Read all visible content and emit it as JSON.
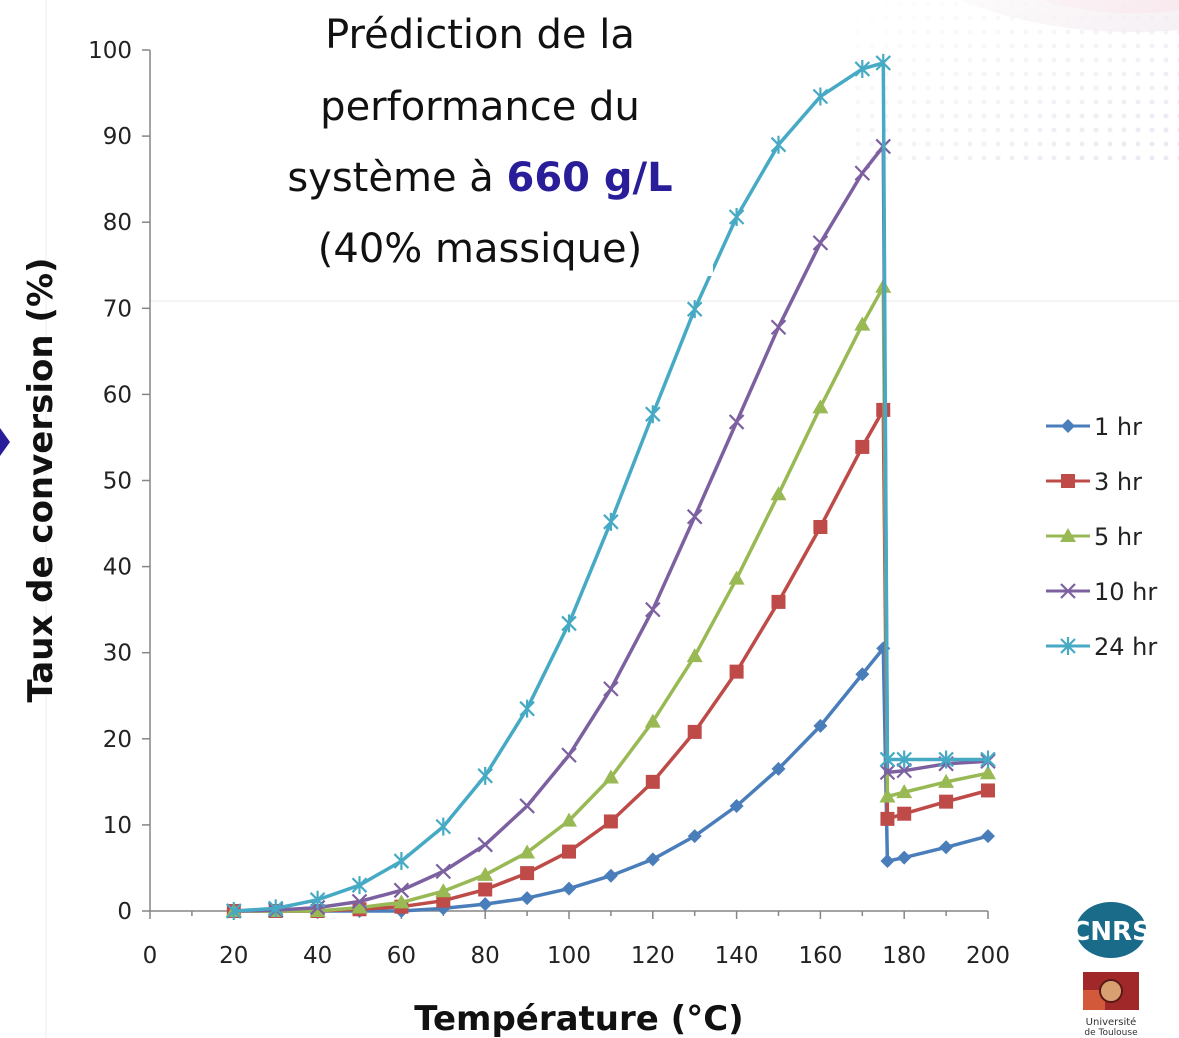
{
  "colors": {
    "series_1hr": "#4a7ebb",
    "series_3hr": "#be4b48",
    "series_5hr": "#98b954",
    "series_10hr": "#7d60a0",
    "series_24hr": "#46aac5",
    "highlight": "#2a1d9a",
    "cnrs_logo": "#1a6a8a",
    "toulouse_logo": "#a02828"
  },
  "logos": {
    "cnrs_text": "CNRS",
    "toulouse_line1": "Université",
    "toulouse_line2": "de Toulouse"
  },
  "chart_data": {
    "type": "line",
    "title_lines": [
      "Prédiction de la",
      "performance du"
    ],
    "title_line3_prefix": "système à ",
    "title_line3_highlight": "660 g/L",
    "title_line4": "(40% massique)",
    "xlabel": "Température (°C)",
    "ylabel": "Taux de conversion (%)",
    "xlim": [
      0,
      200
    ],
    "ylim": [
      0,
      100
    ],
    "x_ticks": [
      "0",
      "20",
      "40",
      "60",
      "80",
      "100",
      "120",
      "140",
      "160",
      "180",
      "200"
    ],
    "y_ticks": [
      "0",
      "10",
      "20",
      "30",
      "40",
      "50",
      "60",
      "70",
      "80",
      "90",
      "100"
    ],
    "grid": "none",
    "legend_position": "right",
    "series": [
      {
        "name": "1 hr",
        "marker": "diamond",
        "x": [
          20,
          30,
          40,
          50,
          60,
          70,
          80,
          90,
          100,
          110,
          120,
          130,
          140,
          150,
          160,
          170,
          175,
          176,
          180,
          190,
          200
        ],
        "y": [
          0,
          0,
          0,
          0,
          0,
          0.3,
          0.8,
          1.5,
          2.6,
          4.1,
          6.0,
          8.7,
          12.2,
          16.5,
          21.5,
          27.5,
          30.5,
          5.8,
          6.2,
          7.4,
          8.7
        ]
      },
      {
        "name": "3 hr",
        "marker": "square",
        "x": [
          20,
          30,
          40,
          50,
          60,
          70,
          80,
          90,
          100,
          110,
          120,
          130,
          140,
          150,
          160,
          170,
          175,
          176,
          180,
          190,
          200
        ],
        "y": [
          0,
          0,
          0,
          0.2,
          0.5,
          1.2,
          2.5,
          4.4,
          6.9,
          10.4,
          15.0,
          20.8,
          27.8,
          35.9,
          44.6,
          53.9,
          58.2,
          10.7,
          11.3,
          12.7,
          14.0
        ]
      },
      {
        "name": "5 hr",
        "marker": "triangle",
        "x": [
          20,
          30,
          40,
          50,
          60,
          70,
          80,
          90,
          100,
          110,
          120,
          130,
          140,
          150,
          160,
          170,
          175,
          176,
          180,
          190,
          200
        ],
        "y": [
          0,
          0,
          0,
          0.4,
          1.0,
          2.3,
          4.2,
          6.8,
          10.5,
          15.5,
          22.0,
          29.6,
          38.6,
          48.4,
          58.5,
          68.1,
          72.5,
          13.3,
          13.8,
          15.0,
          16.0
        ]
      },
      {
        "name": "10 hr",
        "marker": "x",
        "x": [
          20,
          30,
          40,
          50,
          60,
          70,
          80,
          90,
          100,
          110,
          120,
          130,
          140,
          150,
          160,
          170,
          175,
          176,
          180,
          190,
          200
        ],
        "y": [
          0,
          0.1,
          0.4,
          1.1,
          2.4,
          4.6,
          7.7,
          12.2,
          18.1,
          25.8,
          35.0,
          45.8,
          56.8,
          67.8,
          77.6,
          85.7,
          88.8,
          16.1,
          16.3,
          17.1,
          17.4
        ]
      },
      {
        "name": "24 hr",
        "marker": "star",
        "x": [
          20,
          30,
          40,
          50,
          60,
          70,
          80,
          90,
          100,
          110,
          120,
          130,
          140,
          150,
          160,
          170,
          175,
          176,
          180,
          190,
          200
        ],
        "y": [
          0,
          0.3,
          1.3,
          3.0,
          5.8,
          9.8,
          15.7,
          23.5,
          33.4,
          45.2,
          57.7,
          69.9,
          80.6,
          89.0,
          94.6,
          97.8,
          98.5,
          17.6,
          17.6,
          17.6,
          17.6
        ]
      }
    ]
  }
}
